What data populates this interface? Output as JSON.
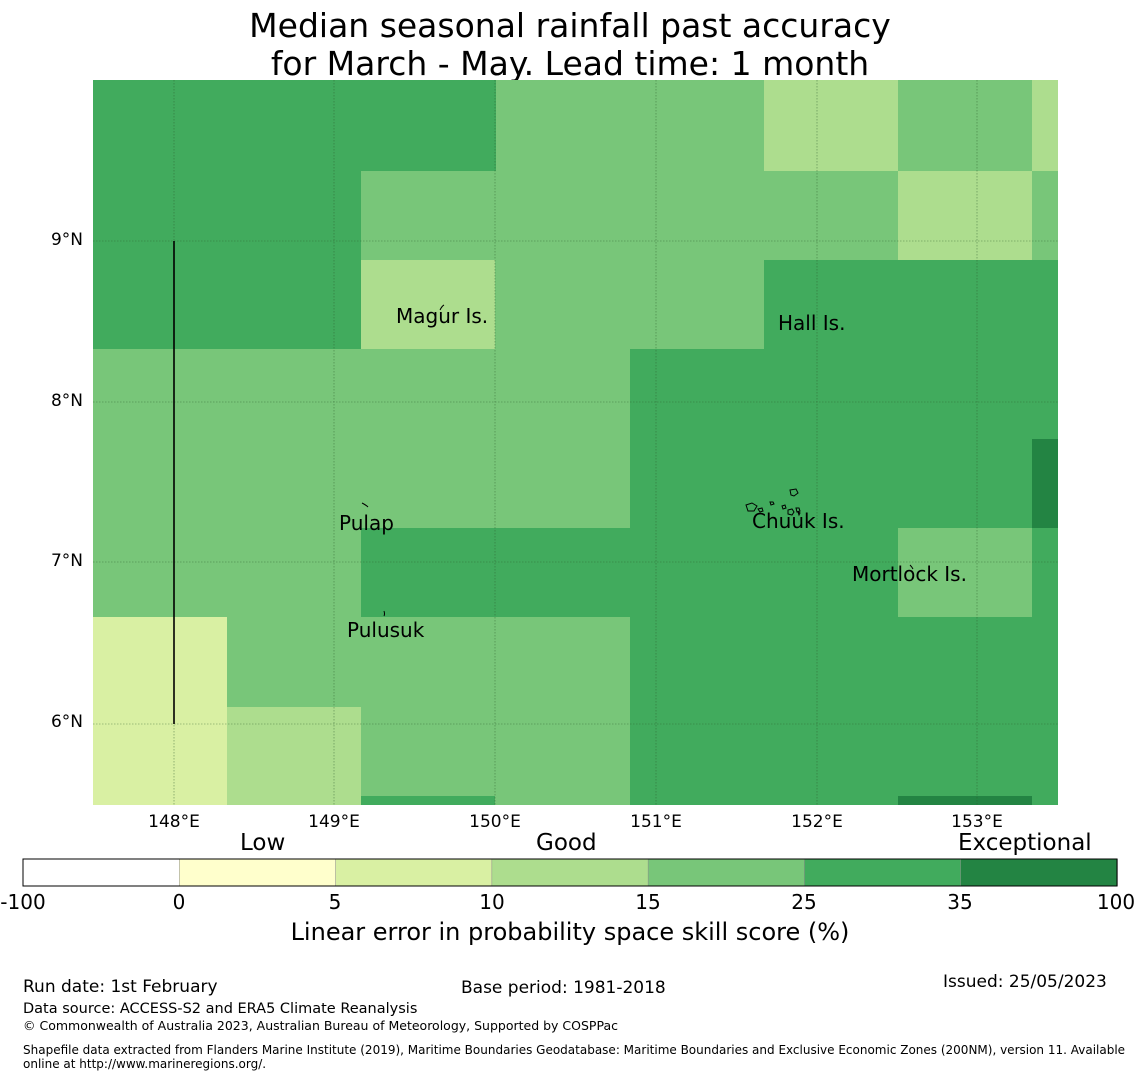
{
  "title": {
    "line1": "Median seasonal rainfall past accuracy",
    "line2": "for March - May. Lead time: 1 month"
  },
  "map": {
    "lat_labels": [
      "9°N",
      "8°N",
      "7°N",
      "6°N"
    ],
    "lon_labels": [
      "148°E",
      "149°E",
      "150°E",
      "151°E",
      "152°E",
      "153°E"
    ],
    "places": [
      {
        "name": "Magur Is."
      },
      {
        "name": "Hall Is."
      },
      {
        "name": "Pulap"
      },
      {
        "name": "Chuuk Is."
      },
      {
        "name": "Mortlock Is."
      },
      {
        "name": "Pulusuk"
      }
    ]
  },
  "legend": {
    "category_labels": [
      "Low",
      "Good",
      "Exceptional"
    ],
    "ticks": [
      "-100",
      "0",
      "5",
      "10",
      "15",
      "25",
      "35",
      "100"
    ],
    "colors": [
      "#ffffff",
      "#ffffcc",
      "#d9f0a3",
      "#addd8e",
      "#78c679",
      "#41ab5d",
      "#238443"
    ],
    "title": "Linear error in probability space skill score (%)"
  },
  "footer": {
    "run_date": "Run date: 1st February",
    "base_period": "Base period: 1981-2018",
    "issued": "Issued: 25/05/2023",
    "data_source": "Data source: ACCESS-S2 and ERA5 Climate Reanalysis",
    "copyright": "© Commonwealth of Australia 2023, Australian Bureau of Meteorology, Supported by COSPPac",
    "shapefile_line1": "Shapefile data extracted from Flanders Marine Institute (2019), Maritime Boundaries Geodatabase: Maritime Boundaries and Exclusive Economic Zones (200NM), version 11. Available",
    "shapefile_line2": "online at http://www.marineregions.org/."
  }
}
